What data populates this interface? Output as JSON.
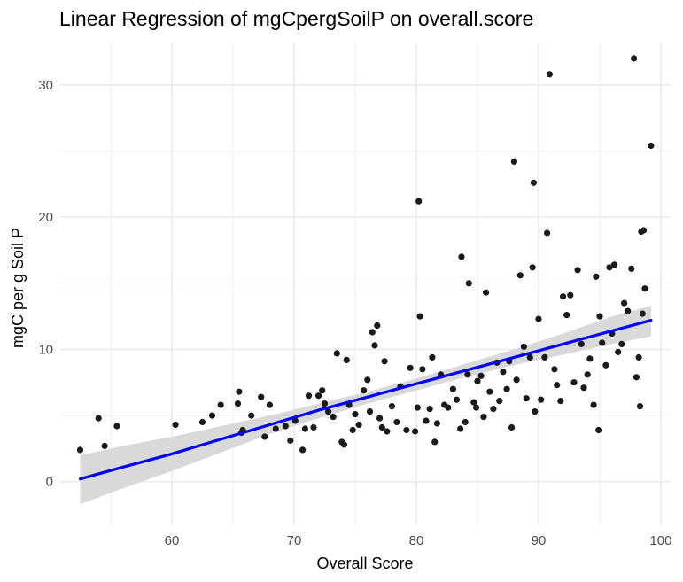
{
  "chart_data": {
    "type": "scatter",
    "title": "Linear Regression of mgCpergSoilP on overall.score",
    "xlabel": "Overall Score",
    "ylabel": "mgC per g Soil P",
    "xlim": [
      50.8,
      100.8
    ],
    "ylim": [
      -3.3,
      33.2
    ],
    "x_ticks": [
      60,
      70,
      80,
      90,
      100
    ],
    "y_ticks": [
      0,
      10,
      20,
      30
    ],
    "x_tick_labels": [
      "60",
      "70",
      "80",
      "90",
      "100"
    ],
    "y_tick_labels": [
      "0",
      "10",
      "20",
      "30"
    ],
    "grid": true,
    "legend": "none",
    "colors": {
      "points": "#1a1a1a",
      "fit_line": "#0000ff",
      "confidence_band": "#d9d9d9",
      "grid": "#ebebeb"
    },
    "fit": {
      "x": [
        52.5,
        56,
        60,
        64,
        68,
        72,
        76,
        80,
        84,
        88,
        92,
        96,
        99.2
      ],
      "y": [
        0.2,
        1.1,
        2.1,
        3.2,
        4.3,
        5.4,
        6.4,
        7.4,
        8.4,
        9.4,
        10.4,
        11.4,
        12.2
      ],
      "lower": [
        -1.7,
        -0.5,
        0.8,
        2.2,
        3.6,
        4.8,
        5.9,
        6.9,
        7.9,
        8.8,
        9.6,
        10.4,
        11.0
      ],
      "upper": [
        2.0,
        2.7,
        3.4,
        4.2,
        5.0,
        5.9,
        6.8,
        7.8,
        8.9,
        10.0,
        11.2,
        12.5,
        13.3
      ]
    },
    "points": [
      [
        52.5,
        2.4
      ],
      [
        54,
        4.8
      ],
      [
        54.5,
        2.7
      ],
      [
        55.5,
        4.2
      ],
      [
        60.3,
        4.3
      ],
      [
        62.5,
        4.5
      ],
      [
        63.3,
        5.0
      ],
      [
        64,
        5.8
      ],
      [
        65.5,
        6.8
      ],
      [
        65.4,
        5.9
      ],
      [
        65.8,
        3.9
      ],
      [
        65.7,
        3.7
      ],
      [
        66.5,
        5.0
      ],
      [
        67.3,
        6.4
      ],
      [
        67.6,
        3.4
      ],
      [
        68,
        5.8
      ],
      [
        68.5,
        4.0
      ],
      [
        69.3,
        4.2
      ],
      [
        69.7,
        3.1
      ],
      [
        70.1,
        4.6
      ],
      [
        70.7,
        2.4
      ],
      [
        70.9,
        4.0
      ],
      [
        71.2,
        6.5
      ],
      [
        71.6,
        4.1
      ],
      [
        72,
        6.5
      ],
      [
        72.3,
        6.9
      ],
      [
        72.5,
        5.9
      ],
      [
        72.8,
        5.3
      ],
      [
        73.2,
        4.9
      ],
      [
        73.5,
        9.7
      ],
      [
        73.9,
        3.0
      ],
      [
        74.1,
        2.8
      ],
      [
        74.3,
        9.2
      ],
      [
        74.5,
        5.8
      ],
      [
        74.8,
        3.9
      ],
      [
        75.0,
        5.1
      ],
      [
        75.3,
        4.3
      ],
      [
        75.7,
        6.9
      ],
      [
        76.0,
        7.7
      ],
      [
        76.2,
        5.3
      ],
      [
        76.4,
        11.3
      ],
      [
        76.8,
        11.8
      ],
      [
        76.6,
        10.3
      ],
      [
        77.0,
        4.8
      ],
      [
        77.2,
        4.1
      ],
      [
        77.4,
        9.1
      ],
      [
        77.6,
        3.8
      ],
      [
        78.0,
        5.7
      ],
      [
        78.4,
        4.5
      ],
      [
        78.7,
        7.2
      ],
      [
        79.2,
        3.9
      ],
      [
        79.5,
        8.6
      ],
      [
        79.9,
        3.8
      ],
      [
        80.1,
        5.6
      ],
      [
        80.2,
        21.2
      ],
      [
        80.3,
        12.5
      ],
      [
        80.5,
        8.5
      ],
      [
        80.8,
        4.6
      ],
      [
        81.1,
        5.5
      ],
      [
        81.3,
        9.4
      ],
      [
        81.5,
        3.0
      ],
      [
        81.7,
        4.4
      ],
      [
        82.0,
        8.1
      ],
      [
        82.3,
        5.8
      ],
      [
        82.6,
        5.6
      ],
      [
        83.0,
        7.0
      ],
      [
        83.3,
        6.2
      ],
      [
        83.6,
        4.0
      ],
      [
        83.7,
        17.0
      ],
      [
        84.0,
        4.5
      ],
      [
        84.2,
        8.1
      ],
      [
        84.3,
        15.0
      ],
      [
        84.7,
        6.0
      ],
      [
        84.9,
        5.6
      ],
      [
        85.0,
        7.6
      ],
      [
        85.3,
        8.0
      ],
      [
        85.5,
        4.9
      ],
      [
        85.7,
        14.3
      ],
      [
        86.0,
        6.8
      ],
      [
        86.3,
        5.5
      ],
      [
        86.6,
        9.0
      ],
      [
        86.8,
        6.1
      ],
      [
        87.1,
        8.3
      ],
      [
        87.4,
        7.0
      ],
      [
        87.6,
        9.1
      ],
      [
        87.8,
        4.1
      ],
      [
        88.0,
        24.2
      ],
      [
        88.2,
        7.7
      ],
      [
        88.5,
        15.6
      ],
      [
        88.8,
        10.2
      ],
      [
        89.0,
        6.3
      ],
      [
        89.3,
        9.4
      ],
      [
        89.5,
        16.2
      ],
      [
        89.6,
        22.6
      ],
      [
        89.7,
        5.3
      ],
      [
        90.0,
        12.3
      ],
      [
        90.2,
        6.2
      ],
      [
        90.5,
        9.4
      ],
      [
        90.7,
        18.8
      ],
      [
        90.9,
        30.8
      ],
      [
        91.3,
        8.5
      ],
      [
        91.5,
        7.3
      ],
      [
        91.8,
        6.1
      ],
      [
        92.0,
        14.0
      ],
      [
        92.3,
        12.6
      ],
      [
        92.6,
        14.1
      ],
      [
        92.9,
        7.5
      ],
      [
        93.2,
        16.0
      ],
      [
        93.5,
        10.4
      ],
      [
        93.7,
        7.1
      ],
      [
        94.0,
        8.1
      ],
      [
        94.2,
        9.3
      ],
      [
        94.5,
        5.8
      ],
      [
        94.7,
        15.5
      ],
      [
        94.9,
        3.9
      ],
      [
        95.0,
        12.5
      ],
      [
        95.2,
        10.5
      ],
      [
        95.5,
        8.8
      ],
      [
        95.8,
        16.2
      ],
      [
        96.0,
        11.2
      ],
      [
        96.2,
        16.4
      ],
      [
        96.5,
        9.8
      ],
      [
        96.8,
        10.4
      ],
      [
        97.0,
        13.5
      ],
      [
        97.3,
        12.9
      ],
      [
        97.6,
        16.1
      ],
      [
        97.8,
        32.0
      ],
      [
        98.0,
        7.9
      ],
      [
        98.3,
        5.7
      ],
      [
        98.4,
        18.9
      ],
      [
        98.6,
        19.0
      ],
      [
        98.7,
        14.6
      ],
      [
        98.5,
        12.7
      ],
      [
        99.2,
        25.4
      ],
      [
        98.2,
        9.4
      ]
    ]
  }
}
